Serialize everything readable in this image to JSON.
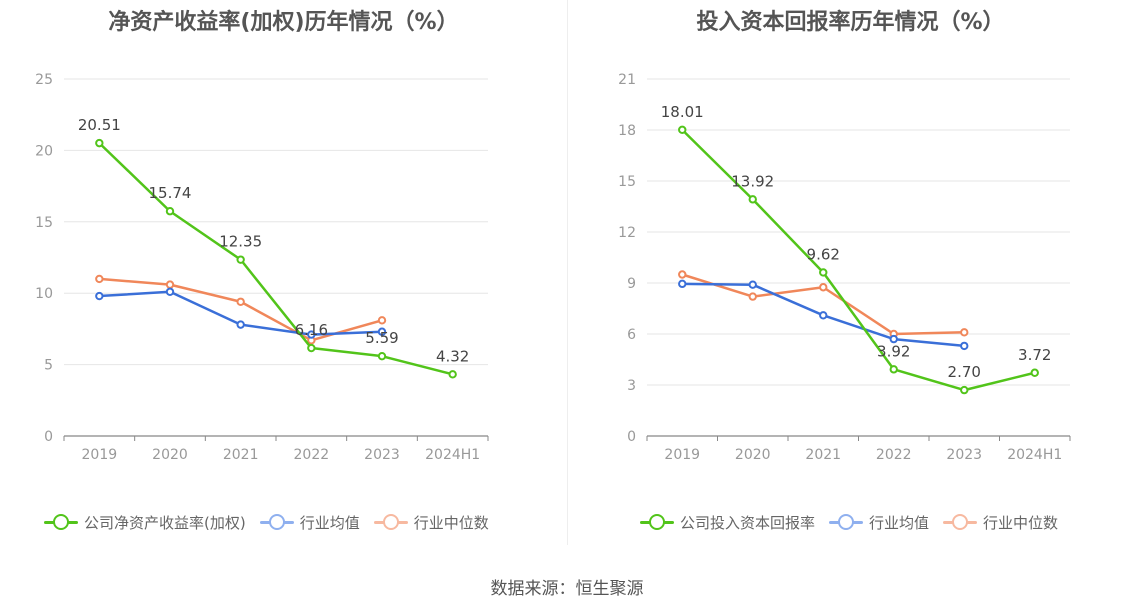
{
  "source": "数据来源：恒生聚源",
  "charts": [
    {
      "title": "净资产收益率(加权)历年情况（%）",
      "legend": [
        "公司净资产收益率(加权)",
        "行业均值",
        "行业中位数"
      ]
    },
    {
      "title": "投入资本回报率历年情况（%）",
      "legend": [
        "公司投入资本回报率",
        "行业均值",
        "行业中位数"
      ]
    }
  ],
  "chart_data": [
    {
      "type": "line",
      "title": "净资产收益率(加权)历年情况（%）",
      "categories": [
        "2019",
        "2020",
        "2021",
        "2022",
        "2023",
        "2024H1"
      ],
      "ylim": [
        0,
        25
      ],
      "yticks": [
        0,
        5,
        10,
        15,
        20,
        25
      ],
      "grid": true,
      "legend_position": "bottom",
      "series": [
        {
          "name": "公司净资产收益率(加权)",
          "color": "#52c41a",
          "values": [
            20.51,
            15.74,
            12.35,
            6.16,
            5.59,
            4.32
          ],
          "labels": [
            "20.51",
            "15.74",
            "12.35",
            "6.16",
            "5.59",
            "4.32"
          ]
        },
        {
          "name": "行业均值",
          "color": "#3a6fd8",
          "values": [
            9.8,
            10.1,
            7.8,
            7.1,
            7.3,
            null
          ]
        },
        {
          "name": "行业中位数",
          "color": "#f0875a",
          "values": [
            11.0,
            10.6,
            9.4,
            6.7,
            8.1,
            null
          ]
        }
      ]
    },
    {
      "type": "line",
      "title": "投入资本回报率历年情况（%）",
      "categories": [
        "2019",
        "2020",
        "2021",
        "2022",
        "2023",
        "2024H1"
      ],
      "ylim": [
        0,
        21
      ],
      "yticks": [
        0,
        3,
        6,
        9,
        12,
        15,
        18,
        21
      ],
      "grid": true,
      "legend_position": "bottom",
      "series": [
        {
          "name": "公司投入资本回报率",
          "color": "#52c41a",
          "values": [
            18.01,
            13.92,
            9.62,
            3.92,
            2.7,
            3.72
          ],
          "labels": [
            "18.01",
            "13.92",
            "9.62",
            "3.92",
            "2.70",
            "3.72"
          ]
        },
        {
          "name": "行业均值",
          "color": "#3a6fd8",
          "values": [
            8.95,
            8.9,
            7.1,
            5.7,
            5.3,
            null
          ]
        },
        {
          "name": "行业中位数",
          "color": "#f0875a",
          "values": [
            9.5,
            8.2,
            8.75,
            6.0,
            6.1,
            null
          ]
        }
      ]
    }
  ],
  "legend_colors": [
    "#52c41a",
    "#8fb0ef",
    "#f7b9a0"
  ]
}
